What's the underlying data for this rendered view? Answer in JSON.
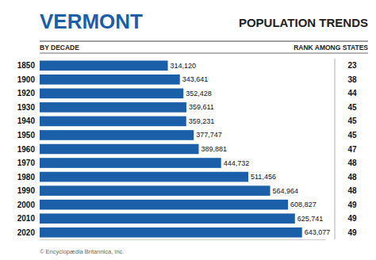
{
  "chart_data": {
    "type": "bar",
    "orientation": "horizontal",
    "title": "VERMONT",
    "subtitle": "POPULATION TRENDS",
    "annotations": [
      "BY DECADE",
      "RANK AMONG STATES",
      "© Encyclopædia Britannica, Inc."
    ],
    "categories": [
      "1850",
      "1900",
      "1920",
      "1930",
      "1940",
      "1950",
      "1960",
      "1970",
      "1980",
      "1990",
      "2000",
      "2010",
      "2020"
    ],
    "values": [
      314120,
      343641,
      352428,
      359611,
      359231,
      377747,
      389881,
      444732,
      511456,
      564964,
      608827,
      625741,
      643077
    ],
    "value_labels": [
      "314,120",
      "343,641",
      "352,428",
      "359,611",
      "359,231",
      "377,747",
      "389,881",
      "444,732",
      "511,456",
      "564,964",
      "608,827",
      "625,741",
      "643,077"
    ],
    "ranks": [
      23,
      38,
      44,
      45,
      45,
      45,
      47,
      48,
      48,
      48,
      49,
      49,
      49
    ],
    "color": "#1a5fa8",
    "xlim": [
      0,
      700000
    ],
    "data_labels": true,
    "tick_labels": "y",
    "grid": false
  }
}
